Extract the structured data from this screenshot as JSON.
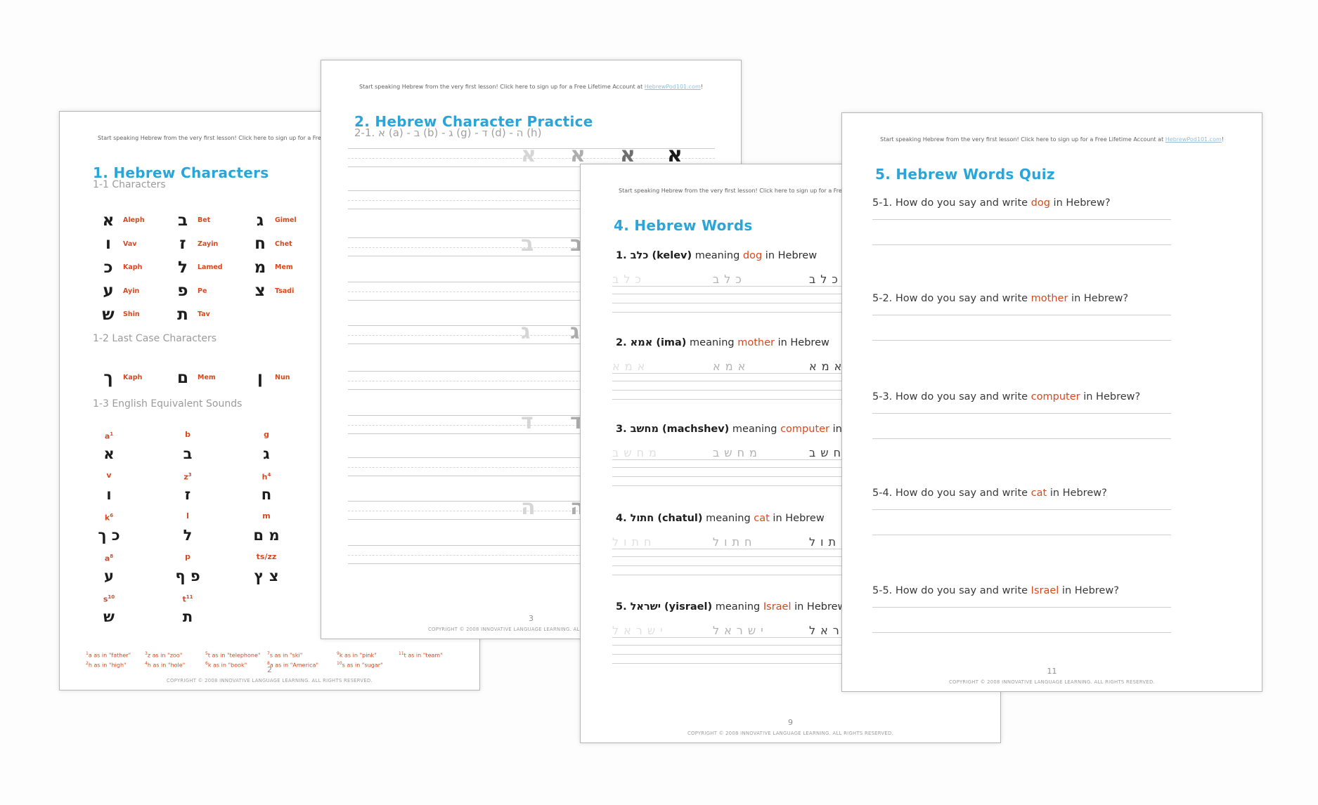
{
  "colors": {
    "accent": "#2aa5da",
    "red": "#d9481c"
  },
  "common": {
    "header_prefix": "Start speaking Hebrew from the very first lesson! Click here to sign up for a Free Lifetime Account at ",
    "header_link": "HebrewPod101.com",
    "header_suffix": "!",
    "copyright": "COPYRIGHT © 2008 INNOVATIVE LANGUAGE LEARNING. ALL RIGHTS RESERVED."
  },
  "page1": {
    "title": "1. Hebrew Characters",
    "section1": "1-1 Characters",
    "section2": "1-2 Last Case Characters",
    "section3": "1-3 English Equivalent Sounds",
    "characters": [
      {
        "ch": "א",
        "name": "Aleph"
      },
      {
        "ch": "ב",
        "name": "Bet"
      },
      {
        "ch": "ג",
        "name": "Gimel"
      },
      {
        "ch": "ו",
        "name": "Vav"
      },
      {
        "ch": "ז",
        "name": "Zayin"
      },
      {
        "ch": "ח",
        "name": "Chet"
      },
      {
        "ch": "כ",
        "name": "Kaph"
      },
      {
        "ch": "ל",
        "name": "Lamed"
      },
      {
        "ch": "מ",
        "name": "Mem"
      },
      {
        "ch": "ע",
        "name": "Ayin"
      },
      {
        "ch": "פ",
        "name": "Pe"
      },
      {
        "ch": "צ",
        "name": "Tsadi"
      },
      {
        "ch": "ש",
        "name": "Shin"
      },
      {
        "ch": "ת",
        "name": "Tav"
      }
    ],
    "final_characters": [
      {
        "ch": "ך",
        "name": "Kaph"
      },
      {
        "ch": "ם",
        "name": "Mem"
      },
      {
        "ch": "ן",
        "name": "Nun"
      }
    ],
    "sounds": [
      [
        {
          "s": "a",
          "sup": "1",
          "ch": "א"
        },
        {
          "s": "b",
          "sup": "",
          "ch": "ב"
        },
        {
          "s": "g",
          "sup": "",
          "ch": "ג"
        }
      ],
      [
        {
          "s": "v",
          "sup": "",
          "ch": "ו"
        },
        {
          "s": "z",
          "sup": "3",
          "ch": "ז"
        },
        {
          "s": "h",
          "sup": "4",
          "ch": "ח"
        }
      ],
      [
        {
          "s": "k",
          "sup": "6",
          "ch": "כ ך"
        },
        {
          "s": "l",
          "sup": "",
          "ch": "ל"
        },
        {
          "s": "m",
          "sup": "",
          "ch": "מ ם"
        }
      ],
      [
        {
          "s": "a",
          "sup": "8",
          "ch": "ע"
        },
        {
          "s": "p",
          "sup": "",
          "ch": "פ ף"
        },
        {
          "s": "ts/zz",
          "sup": "",
          "ch": "צ ץ"
        }
      ],
      [
        {
          "s": "s",
          "sup": "10",
          "ch": "ש"
        },
        {
          "s": "t",
          "sup": "11",
          "ch": "ת"
        }
      ]
    ],
    "footnotes": [
      {
        "top": {
          "sup": "1",
          "text": "a as in \"father\""
        },
        "bottom": {
          "sup": "2",
          "text": "h as in \"high\""
        }
      },
      {
        "top": {
          "sup": "3",
          "text": "z as in \"zoo\""
        },
        "bottom": {
          "sup": "4",
          "text": "h as in \"hole\""
        }
      },
      {
        "top": {
          "sup": "5",
          "text": "t as in \"telephone\""
        },
        "bottom": {
          "sup": "6",
          "text": "k as in \"book\""
        }
      },
      {
        "top": {
          "sup": "7",
          "text": "s as in \"ski\""
        },
        "bottom": {
          "sup": "8",
          "text": "a as in \"America\""
        }
      },
      {
        "top": {
          "sup": "9",
          "text": "k as in \"pink\""
        },
        "bottom": {
          "sup": "10",
          "text": "s as in \"sugar\""
        }
      },
      {
        "top": {
          "sup": "11",
          "text": "t as in \"team\""
        },
        "bottom": null
      }
    ],
    "page_number": "2"
  },
  "page2": {
    "title": "2. Hebrew Character Practice",
    "subtitle": "2-1. א (a) - ב (b) - ג (g) - ד (d) - ה (h)",
    "practice_letters": [
      "א",
      "ב",
      "ג",
      "ד",
      "ה"
    ],
    "page_number": "3"
  },
  "page3": {
    "title": "4. Hebrew Words",
    "meaning_label": "meaning",
    "suffix": "in Hebrew",
    "items": [
      {
        "num": "1.",
        "hebrew": "כלב",
        "translit": "(kelev)",
        "meaning": "dog"
      },
      {
        "num": "2.",
        "hebrew": "אמא",
        "translit": "(ima)",
        "meaning": "mother"
      },
      {
        "num": "3.",
        "hebrew": "מחשב",
        "translit": "(machshev)",
        "meaning": "computer"
      },
      {
        "num": "4.",
        "hebrew": "חתול",
        "translit": "(chatul)",
        "meaning": "cat"
      },
      {
        "num": "5.",
        "hebrew": "ישראל",
        "translit": "(yisrael)",
        "meaning": "Israel"
      }
    ],
    "page_number": "9"
  },
  "page4": {
    "title": "5. Hebrew Words Quiz",
    "question_prefix": "How do you say and write",
    "question_suffix": "in Hebrew?",
    "questions": [
      {
        "num": "5-1.",
        "word": "dog"
      },
      {
        "num": "5-2.",
        "word": "mother"
      },
      {
        "num": "5-3.",
        "word": "computer"
      },
      {
        "num": "5-4.",
        "word": "cat"
      },
      {
        "num": "5-5.",
        "word": "Israel"
      }
    ],
    "page_number": "11"
  }
}
